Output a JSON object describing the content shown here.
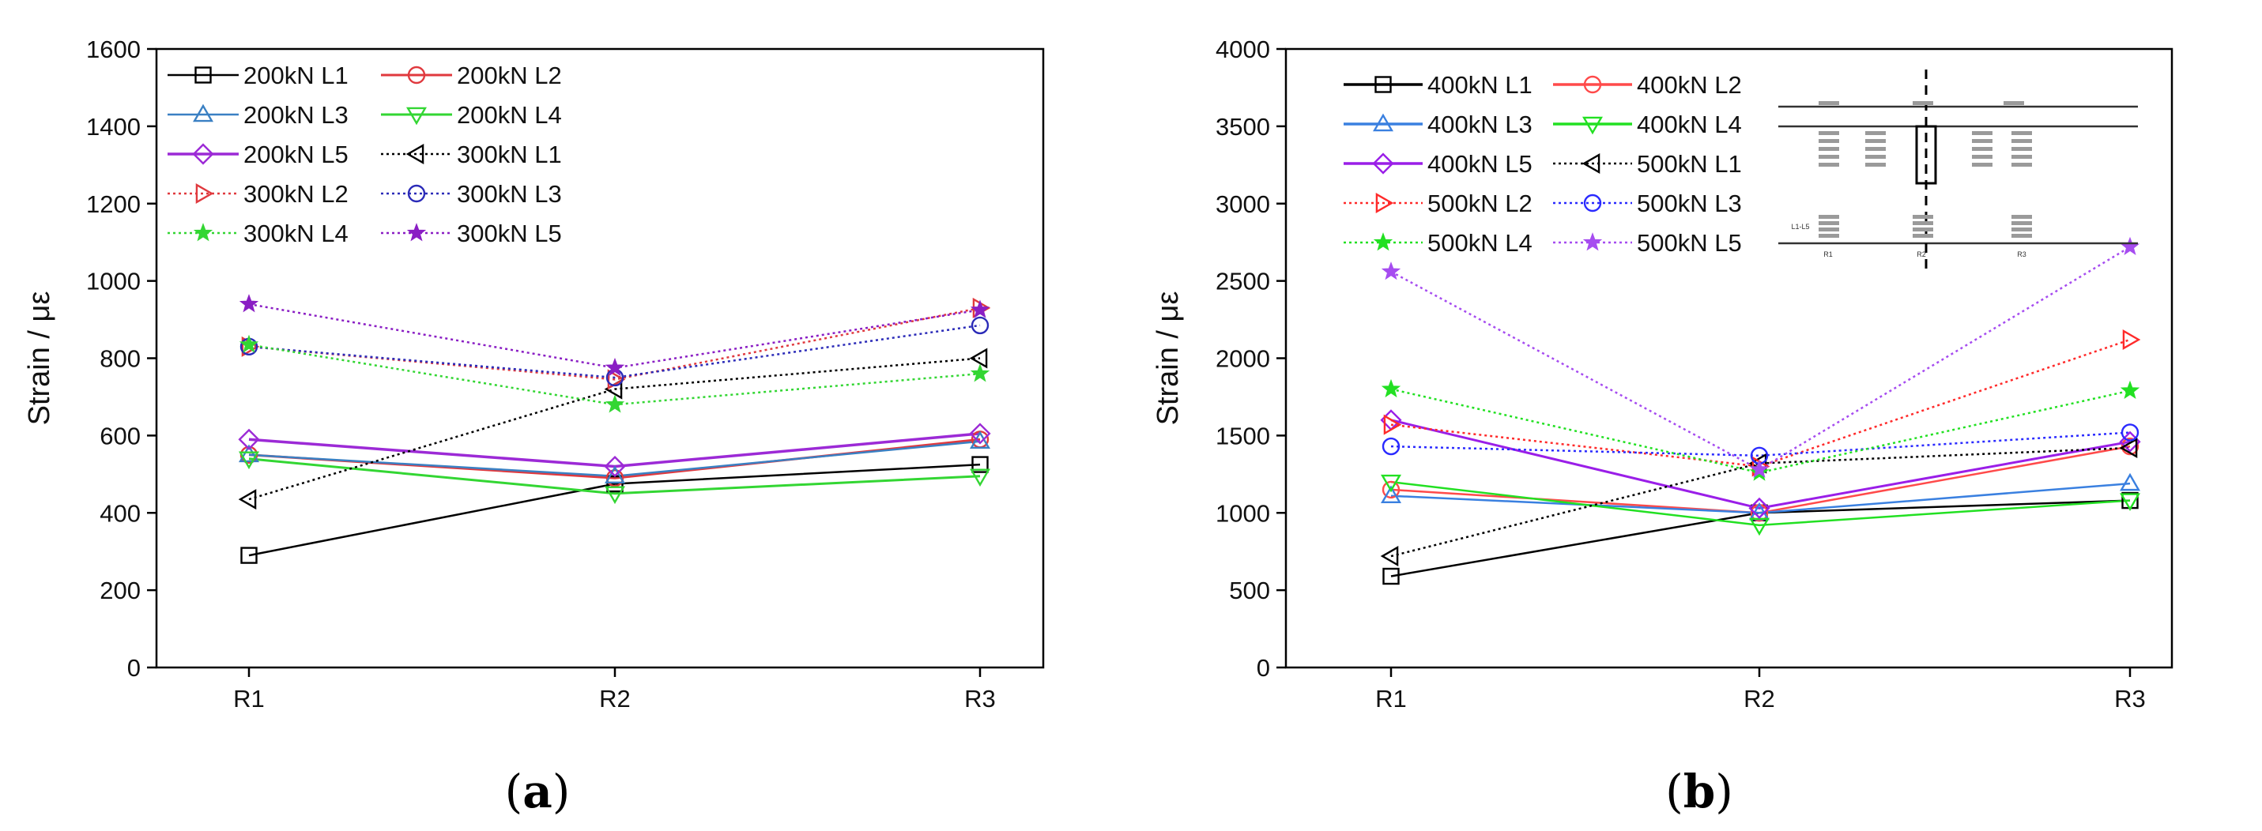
{
  "chart_data": [
    {
      "type": "line",
      "panel_label": [
        "(",
        "a",
        ")"
      ],
      "title": "",
      "xlabel": "",
      "ylabel": "Strain / με",
      "categories": [
        "R1",
        "R2",
        "R3"
      ],
      "ylim": [
        0,
        1600
      ],
      "yticks": [
        0,
        200,
        400,
        600,
        800,
        1000,
        1200,
        1400,
        1600
      ],
      "grid": false,
      "legend_columns": 2,
      "legend_placement": "top-left",
      "series": [
        {
          "name": "200kN L1",
          "values": [
            290,
            475,
            525
          ],
          "color": "#000000",
          "marker": "square",
          "dash": "solid",
          "width": 2.5
        },
        {
          "name": "200kN L2",
          "values": [
            550,
            490,
            590
          ],
          "color": "#e0393e",
          "marker": "circle",
          "dash": "solid",
          "width": 3
        },
        {
          "name": "200kN L3",
          "values": [
            550,
            495,
            585
          ],
          "color": "#3a80c3",
          "marker": "triangle-up",
          "dash": "solid",
          "width": 2.5
        },
        {
          "name": "200kN L4",
          "values": [
            540,
            450,
            495
          ],
          "color": "#33d633",
          "marker": "triangle-down",
          "dash": "solid",
          "width": 3
        },
        {
          "name": "200kN L5",
          "values": [
            590,
            520,
            605
          ],
          "color": "#9c2ad6",
          "marker": "diamond",
          "dash": "solid",
          "width": 3.5
        },
        {
          "name": "300kN L1",
          "values": [
            435,
            720,
            800
          ],
          "color": "#000000",
          "marker": "triangle-left",
          "dash": "dotted",
          "width": 2.5
        },
        {
          "name": "300kN L2",
          "values": [
            830,
            745,
            930
          ],
          "color": "#e0393e",
          "marker": "triangle-right",
          "dash": "dotted",
          "width": 2.5
        },
        {
          "name": "300kN L3",
          "values": [
            830,
            750,
            885
          ],
          "color": "#2b2bb8",
          "marker": "circle",
          "dash": "dotted",
          "width": 2.5
        },
        {
          "name": "300kN L4",
          "values": [
            835,
            680,
            760
          ],
          "color": "#33d633",
          "marker": "star",
          "dash": "dotted",
          "width": 2.5
        },
        {
          "name": "300kN L5",
          "values": [
            940,
            775,
            925
          ],
          "color": "#8a1ec4",
          "marker": "star",
          "dash": "dotted",
          "width": 2.5
        }
      ]
    },
    {
      "type": "line",
      "panel_label": [
        "(",
        "b",
        ")"
      ],
      "title": "",
      "xlabel": "",
      "ylabel": "Strain / με",
      "categories": [
        "R1",
        "R2",
        "R3"
      ],
      "ylim": [
        0,
        4000
      ],
      "yticks": [
        0,
        500,
        1000,
        1500,
        2000,
        2500,
        3000,
        3500,
        4000
      ],
      "grid": false,
      "legend_columns": 2,
      "legend_placement": "top-left",
      "series": [
        {
          "name": "400kN L1",
          "values": [
            590,
            1000,
            1080
          ],
          "color": "#000000",
          "marker": "square",
          "dash": "solid",
          "width": 2.5
        },
        {
          "name": "400kN L2",
          "values": [
            1150,
            1000,
            1430
          ],
          "color": "#ff4a4a",
          "marker": "circle",
          "dash": "solid",
          "width": 2.5
        },
        {
          "name": "400kN L3",
          "values": [
            1110,
            1000,
            1190
          ],
          "color": "#3a80e0",
          "marker": "triangle-up",
          "dash": "solid",
          "width": 2.5
        },
        {
          "name": "400kN L4",
          "values": [
            1200,
            920,
            1080
          ],
          "color": "#22e022",
          "marker": "triangle-down",
          "dash": "solid",
          "width": 2.5
        },
        {
          "name": "400kN L5",
          "values": [
            1600,
            1030,
            1460
          ],
          "color": "#9a1ee8",
          "marker": "diamond",
          "dash": "solid",
          "width": 3
        },
        {
          "name": "500kN L1",
          "values": [
            720,
            1320,
            1420
          ],
          "color": "#000000",
          "marker": "triangle-left",
          "dash": "dotted",
          "width": 2.5
        },
        {
          "name": "500kN L2",
          "values": [
            1570,
            1300,
            2120
          ],
          "color": "#ff2a2a",
          "marker": "triangle-right",
          "dash": "dotted",
          "width": 2.5
        },
        {
          "name": "500kN L3",
          "values": [
            1430,
            1370,
            1520
          ],
          "color": "#2a2aff",
          "marker": "circle",
          "dash": "dotted",
          "width": 2.5
        },
        {
          "name": "500kN L4",
          "values": [
            1800,
            1260,
            1790
          ],
          "color": "#22e022",
          "marker": "star",
          "dash": "dotted",
          "width": 2.5
        },
        {
          "name": "500kN L5",
          "values": [
            2560,
            1280,
            2720
          ],
          "color": "#a64cf0",
          "marker": "star",
          "dash": "dotted",
          "width": 2.5
        }
      ],
      "inset": {
        "label": "Cross-section sketch of gauge layout",
        "labels": [
          "L1-L5",
          "R1",
          "R2",
          "R3"
        ]
      }
    }
  ]
}
